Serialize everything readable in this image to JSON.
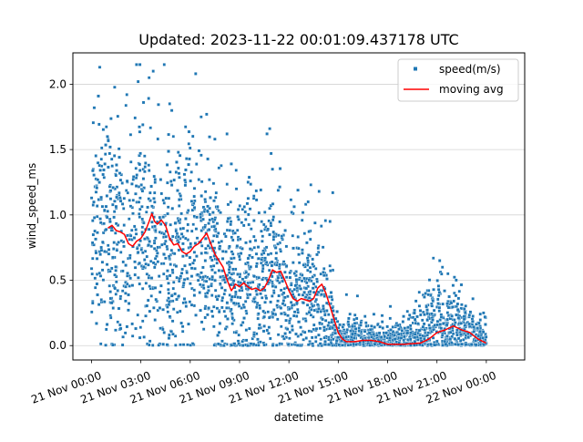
{
  "chart_data": {
    "type": "scatter",
    "title": "Updated: 2023-11-22 00:01:09.437178 UTC",
    "xlabel": "datetime",
    "ylabel": "wind_speed_ms",
    "x_unit": "hours",
    "xlim": [
      "2023-11-20 22:52",
      "2023-11-22 02:20"
    ],
    "ylim": [
      -0.11,
      2.24
    ],
    "x_ticks": [
      {
        "value": "2023-11-21 00:00",
        "label": "21 Nov 00:00"
      },
      {
        "value": "2023-11-21 03:00",
        "label": "21 Nov 03:00"
      },
      {
        "value": "2023-11-21 06:00",
        "label": "21 Nov 06:00"
      },
      {
        "value": "2023-11-21 09:00",
        "label": "21 Nov 09:00"
      },
      {
        "value": "2023-11-21 12:00",
        "label": "21 Nov 12:00"
      },
      {
        "value": "2023-11-21 15:00",
        "label": "21 Nov 15:00"
      },
      {
        "value": "2023-11-21 18:00",
        "label": "21 Nov 18:00"
      },
      {
        "value": "2023-11-21 21:00",
        "label": "21 Nov 21:00"
      },
      {
        "value": "2023-11-22 00:00",
        "label": "22 Nov 00:00"
      }
    ],
    "y_ticks": [
      {
        "value": 0.0,
        "label": "0.0"
      },
      {
        "value": 0.5,
        "label": "0.5"
      },
      {
        "value": 1.0,
        "label": "1.0"
      },
      {
        "value": 1.5,
        "label": "1.5"
      },
      {
        "value": 2.0,
        "label": "2.0"
      }
    ],
    "grid": "horizontal",
    "legend": {
      "position": "top-right"
    },
    "series": [
      {
        "name": "speed(m/s)",
        "kind": "scatter",
        "color": "#1f77b4",
        "envelope": [
          {
            "x": "2023-11-21 00:00",
            "y": 0.8
          },
          {
            "x": "2023-11-21 01:00",
            "y": 0.9
          },
          {
            "x": "2023-11-21 02:00",
            "y": 0.78
          },
          {
            "x": "2023-11-21 03:00",
            "y": 0.95
          },
          {
            "x": "2023-11-21 04:00",
            "y": 0.78
          },
          {
            "x": "2023-11-21 05:00",
            "y": 0.7
          },
          {
            "x": "2023-11-21 06:00",
            "y": 0.8
          },
          {
            "x": "2023-11-21 07:00",
            "y": 0.65
          },
          {
            "x": "2023-11-21 08:00",
            "y": 0.45
          },
          {
            "x": "2023-11-21 09:00",
            "y": 0.45
          },
          {
            "x": "2023-11-21 10:00",
            "y": 0.45
          },
          {
            "x": "2023-11-21 11:00",
            "y": 0.55
          },
          {
            "x": "2023-11-21 12:00",
            "y": 0.38
          },
          {
            "x": "2023-11-21 13:00",
            "y": 0.42
          },
          {
            "x": "2023-11-21 14:00",
            "y": 0.25
          },
          {
            "x": "2023-11-21 15:00",
            "y": 0.06
          },
          {
            "x": "2023-11-21 16:00",
            "y": 0.08
          },
          {
            "x": "2023-11-21 17:00",
            "y": 0.05
          },
          {
            "x": "2023-11-21 18:00",
            "y": 0.02
          },
          {
            "x": "2023-11-21 19:00",
            "y": 0.05
          },
          {
            "x": "2023-11-21 20:00",
            "y": 0.08
          },
          {
            "x": "2023-11-21 21:00",
            "y": 0.2
          },
          {
            "x": "2023-11-21 22:00",
            "y": 0.15
          },
          {
            "x": "2023-11-21 23:00",
            "y": 0.08
          },
          {
            "x": "2023-11-22 00:00",
            "y": 0.05
          }
        ],
        "spread": [
          {
            "x": "2023-11-21 00:00",
            "y": 0.45
          },
          {
            "x": "2023-11-21 03:00",
            "y": 0.45
          },
          {
            "x": "2023-11-21 06:00",
            "y": 0.42
          },
          {
            "x": "2023-11-21 09:00",
            "y": 0.35
          },
          {
            "x": "2023-11-21 12:00",
            "y": 0.3
          },
          {
            "x": "2023-11-21 14:00",
            "y": 0.25
          },
          {
            "x": "2023-11-21 15:00",
            "y": 0.07
          },
          {
            "x": "2023-11-21 19:00",
            "y": 0.07
          },
          {
            "x": "2023-11-21 20:30",
            "y": 0.18
          },
          {
            "x": "2023-11-21 22:00",
            "y": 0.15
          },
          {
            "x": "2023-11-22 00:00",
            "y": 0.08
          }
        ],
        "count": 2600,
        "start": "2023-11-21 00:00",
        "end": "2023-11-22 00:00",
        "highlights": [
          {
            "x": "2023-11-21 00:30",
            "y": 2.13
          },
          {
            "x": "2023-11-21 03:45",
            "y": 2.1
          },
          {
            "x": "2023-11-21 03:30",
            "y": 2.05
          },
          {
            "x": "2023-11-21 06:20",
            "y": 2.08
          },
          {
            "x": "2023-11-21 00:10",
            "y": 1.82
          },
          {
            "x": "2023-11-21 02:50",
            "y": 2.02
          },
          {
            "x": "2023-11-21 04:45",
            "y": 1.85
          },
          {
            "x": "2023-11-21 07:00",
            "y": 1.77
          },
          {
            "x": "2023-11-21 06:40",
            "y": 1.75
          },
          {
            "x": "2023-11-21 07:30",
            "y": 1.58
          },
          {
            "x": "2023-11-21 10:50",
            "y": 1.66
          },
          {
            "x": "2023-11-21 10:40",
            "y": 1.62
          },
          {
            "x": "2023-11-21 10:55",
            "y": 1.47
          },
          {
            "x": "2023-11-21 11:00",
            "y": 1.35
          },
          {
            "x": "2023-11-21 08:30",
            "y": 1.39
          },
          {
            "x": "2023-11-21 13:20",
            "y": 1.23
          },
          {
            "x": "2023-11-21 13:50",
            "y": 1.18
          },
          {
            "x": "2023-11-21 14:40",
            "y": 1.17
          },
          {
            "x": "2023-11-21 14:30",
            "y": 0.95
          },
          {
            "x": "2023-11-21 13:10",
            "y": 1.1
          },
          {
            "x": "2023-11-21 12:10",
            "y": 1.02
          },
          {
            "x": "2023-11-21 15:30",
            "y": 0.39
          },
          {
            "x": "2023-11-21 16:10",
            "y": 0.38
          },
          {
            "x": "2023-11-21 17:10",
            "y": 0.24
          },
          {
            "x": "2023-11-21 17:40",
            "y": 0.23
          },
          {
            "x": "2023-11-21 18:10",
            "y": 0.3
          },
          {
            "x": "2023-11-21 21:10",
            "y": 0.65
          },
          {
            "x": "2023-11-21 21:20",
            "y": 0.6
          },
          {
            "x": "2023-11-21 21:40",
            "y": 0.55
          },
          {
            "x": "2023-11-21 23:50",
            "y": 0.25
          },
          {
            "x": "2023-11-21 23:55",
            "y": 0.22
          },
          {
            "x": "2023-11-21 19:40",
            "y": 0.2
          },
          {
            "x": "2023-11-21 22:40",
            "y": 0.28
          }
        ]
      },
      {
        "name": "moving avg",
        "kind": "line",
        "color": "#ff0000",
        "points": [
          {
            "x": "2023-11-21 01:00",
            "y": 0.9
          },
          {
            "x": "2023-11-21 01:15",
            "y": 0.92
          },
          {
            "x": "2023-11-21 01:30",
            "y": 0.88
          },
          {
            "x": "2023-11-21 01:45",
            "y": 0.87
          },
          {
            "x": "2023-11-21 02:00",
            "y": 0.85
          },
          {
            "x": "2023-11-21 02:15",
            "y": 0.78
          },
          {
            "x": "2023-11-21 02:30",
            "y": 0.76
          },
          {
            "x": "2023-11-21 02:45",
            "y": 0.8
          },
          {
            "x": "2023-11-21 03:00",
            "y": 0.82
          },
          {
            "x": "2023-11-21 03:15",
            "y": 0.87
          },
          {
            "x": "2023-11-21 03:30",
            "y": 0.95
          },
          {
            "x": "2023-11-21 03:40",
            "y": 1.01
          },
          {
            "x": "2023-11-21 03:50",
            "y": 0.95
          },
          {
            "x": "2023-11-21 04:00",
            "y": 0.93
          },
          {
            "x": "2023-11-21 04:15",
            "y": 0.96
          },
          {
            "x": "2023-11-21 04:30",
            "y": 0.92
          },
          {
            "x": "2023-11-21 04:45",
            "y": 0.82
          },
          {
            "x": "2023-11-21 05:00",
            "y": 0.77
          },
          {
            "x": "2023-11-21 05:15",
            "y": 0.78
          },
          {
            "x": "2023-11-21 05:30",
            "y": 0.72
          },
          {
            "x": "2023-11-21 05:45",
            "y": 0.7
          },
          {
            "x": "2023-11-21 06:00",
            "y": 0.72
          },
          {
            "x": "2023-11-21 06:15",
            "y": 0.76
          },
          {
            "x": "2023-11-21 06:30",
            "y": 0.78
          },
          {
            "x": "2023-11-21 06:45",
            "y": 0.82
          },
          {
            "x": "2023-11-21 07:00",
            "y": 0.86
          },
          {
            "x": "2023-11-21 07:15",
            "y": 0.78
          },
          {
            "x": "2023-11-21 07:30",
            "y": 0.7
          },
          {
            "x": "2023-11-21 07:45",
            "y": 0.65
          },
          {
            "x": "2023-11-21 08:00",
            "y": 0.6
          },
          {
            "x": "2023-11-21 08:15",
            "y": 0.5
          },
          {
            "x": "2023-11-21 08:30",
            "y": 0.42
          },
          {
            "x": "2023-11-21 08:45",
            "y": 0.47
          },
          {
            "x": "2023-11-21 09:00",
            "y": 0.45
          },
          {
            "x": "2023-11-21 09:15",
            "y": 0.48
          },
          {
            "x": "2023-11-21 09:30",
            "y": 0.45
          },
          {
            "x": "2023-11-21 09:45",
            "y": 0.43
          },
          {
            "x": "2023-11-21 10:00",
            "y": 0.44
          },
          {
            "x": "2023-11-21 10:15",
            "y": 0.42
          },
          {
            "x": "2023-11-21 10:30",
            "y": 0.44
          },
          {
            "x": "2023-11-21 10:45",
            "y": 0.5
          },
          {
            "x": "2023-11-21 11:00",
            "y": 0.58
          },
          {
            "x": "2023-11-21 11:15",
            "y": 0.56
          },
          {
            "x": "2023-11-21 11:30",
            "y": 0.57
          },
          {
            "x": "2023-11-21 11:45",
            "y": 0.5
          },
          {
            "x": "2023-11-21 12:00",
            "y": 0.42
          },
          {
            "x": "2023-11-21 12:15",
            "y": 0.36
          },
          {
            "x": "2023-11-21 12:30",
            "y": 0.34
          },
          {
            "x": "2023-11-21 12:45",
            "y": 0.36
          },
          {
            "x": "2023-11-21 13:00",
            "y": 0.35
          },
          {
            "x": "2023-11-21 13:15",
            "y": 0.34
          },
          {
            "x": "2023-11-21 13:30",
            "y": 0.36
          },
          {
            "x": "2023-11-21 13:45",
            "y": 0.44
          },
          {
            "x": "2023-11-21 14:00",
            "y": 0.47
          },
          {
            "x": "2023-11-21 14:15",
            "y": 0.4
          },
          {
            "x": "2023-11-21 14:30",
            "y": 0.3
          },
          {
            "x": "2023-11-21 14:45",
            "y": 0.2
          },
          {
            "x": "2023-11-21 15:00",
            "y": 0.1
          },
          {
            "x": "2023-11-21 15:15",
            "y": 0.05
          },
          {
            "x": "2023-11-21 15:30",
            "y": 0.03
          },
          {
            "x": "2023-11-21 16:00",
            "y": 0.03
          },
          {
            "x": "2023-11-21 16:30",
            "y": 0.04
          },
          {
            "x": "2023-11-21 17:00",
            "y": 0.04
          },
          {
            "x": "2023-11-21 17:30",
            "y": 0.03
          },
          {
            "x": "2023-11-21 18:00",
            "y": 0.01
          },
          {
            "x": "2023-11-21 19:00",
            "y": 0.01
          },
          {
            "x": "2023-11-21 20:00",
            "y": 0.02
          },
          {
            "x": "2023-11-21 20:30",
            "y": 0.05
          },
          {
            "x": "2023-11-21 21:00",
            "y": 0.1
          },
          {
            "x": "2023-11-21 21:30",
            "y": 0.12
          },
          {
            "x": "2023-11-21 22:00",
            "y": 0.15
          },
          {
            "x": "2023-11-21 22:30",
            "y": 0.12
          },
          {
            "x": "2023-11-21 23:00",
            "y": 0.1
          },
          {
            "x": "2023-11-21 23:30",
            "y": 0.05
          },
          {
            "x": "2023-11-21 23:59",
            "y": 0.02
          }
        ]
      }
    ]
  }
}
